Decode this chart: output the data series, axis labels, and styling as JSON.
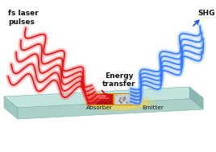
{
  "fig_width": 2.68,
  "fig_height": 1.89,
  "dpi": 100,
  "bg_color": "#ffffff",
  "red_wave_color": "#dd1111",
  "red_wave_glow": "#ff6666",
  "blue_wave_color": "#3377ff",
  "blue_wave_glow": "#88bbff",
  "text_color": "#111111",
  "arrow_red": "#cc1111",
  "arrow_blue": "#2255dd",
  "energy_text": "Energy\ntransfer",
  "label_absorber": "Absorber",
  "label_emitter": "Emitter",
  "label_fs_laser": "fs laser\npulses",
  "label_shg": "SHG",
  "label_fs": 6.5
}
